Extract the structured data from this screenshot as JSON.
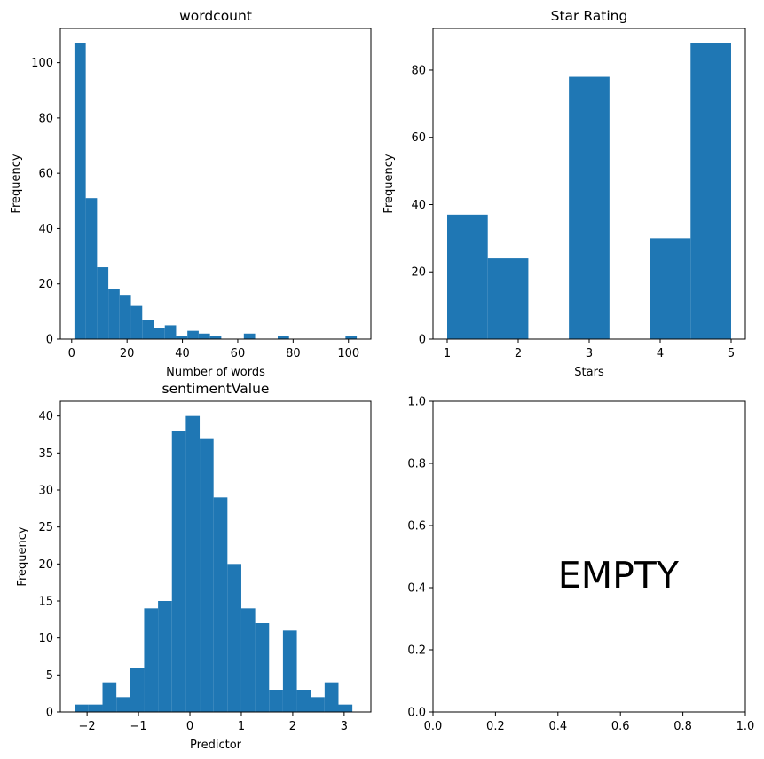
{
  "chart_data": [
    {
      "type": "bar",
      "subtype": "histogram",
      "title": "wordcount",
      "xlabel": "Number of words",
      "ylabel": "Frequency",
      "color": "#1f77b4",
      "xlim": [
        -4.1,
        108.1
      ],
      "ylim": [
        0,
        112.4
      ],
      "xticks": [
        0,
        20,
        40,
        60,
        80,
        100
      ],
      "yticks": [
        0,
        20,
        40,
        60,
        80,
        100
      ],
      "bin_start": 1,
      "bin_width": 4.08,
      "values": [
        107,
        51,
        26,
        18,
        16,
        12,
        7,
        4,
        5,
        1,
        3,
        2,
        1,
        0,
        0,
        2,
        0,
        0,
        1,
        0,
        0,
        0,
        0,
        0,
        1
      ]
    },
    {
      "type": "bar",
      "subtype": "histogram",
      "title": "Star Rating",
      "xlabel": "Stars",
      "ylabel": "Frequency",
      "color": "#1f77b4",
      "xlim": [
        0.8,
        5.2
      ],
      "ylim": [
        0,
        92.4
      ],
      "xticks": [
        1,
        2,
        3,
        4,
        5
      ],
      "yticks": [
        0,
        20,
        40,
        60,
        80
      ],
      "bin_start": 1,
      "bin_width": 0.5714,
      "values": [
        37,
        24,
        0,
        78,
        0,
        30,
        88
      ]
    },
    {
      "type": "bar",
      "subtype": "histogram",
      "title": "sentimentValue",
      "xlabel": "Predictor",
      "ylabel": "Frequency",
      "color": "#1f77b4",
      "xlim": [
        -2.52,
        3.52
      ],
      "ylim": [
        0,
        42
      ],
      "xticks": [
        -2,
        -1,
        0,
        1,
        2,
        3
      ],
      "yticks": [
        0,
        5,
        10,
        15,
        20,
        25,
        30,
        35,
        40
      ],
      "bin_start": -2.24,
      "bin_width": 0.27,
      "values": [
        1,
        1,
        4,
        2,
        6,
        14,
        15,
        38,
        40,
        37,
        29,
        20,
        14,
        12,
        3,
        11,
        3,
        2,
        4,
        1
      ]
    },
    {
      "type": "other",
      "title": "",
      "xlim": [
        0,
        1
      ],
      "ylim": [
        0,
        1
      ],
      "xticks": [
        0.0,
        0.2,
        0.4,
        0.6,
        0.8,
        1.0
      ],
      "yticks": [
        0.0,
        0.2,
        0.4,
        0.6,
        0.8,
        1.0
      ],
      "tick_decimals": 1,
      "annotation": {
        "text": "EMPTY",
        "x": 0.4,
        "y": 0.4
      }
    }
  ]
}
